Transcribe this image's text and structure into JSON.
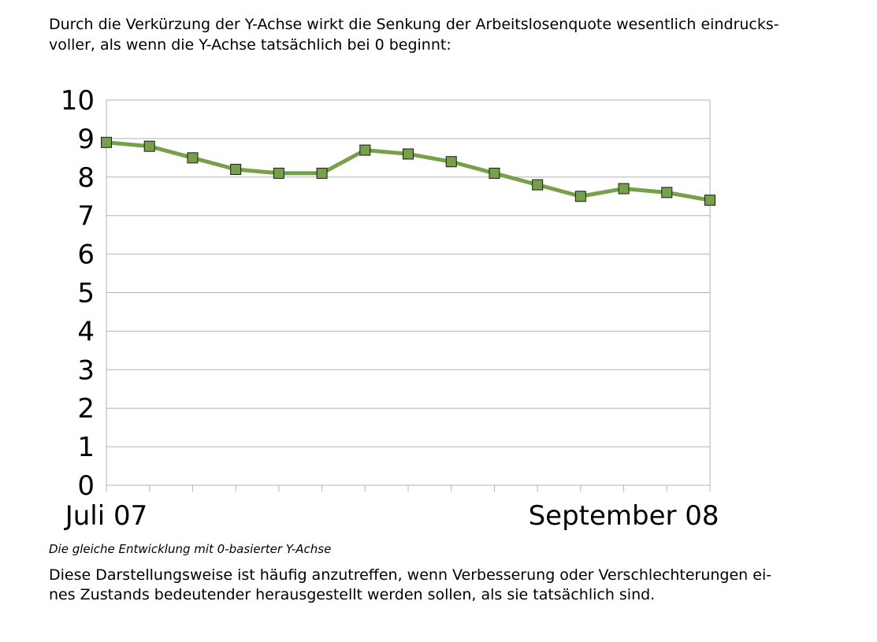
{
  "text": {
    "intro_line1": "Durch die Verkürzung der Y-Achse wirkt die Senkung der Arbeitslosenquote wesentlich eindrucks-",
    "intro_line2": "voller, als wenn die Y-Achse tatsächlich bei 0 beginnt:",
    "caption": "Die gleiche Entwicklung mit 0-basierter Y-Achse",
    "outro_line1": "Diese Darstellungsweise ist häufig anzutreffen, wenn Verbesserung oder Verschlechterungen ei-",
    "outro_line2": "nes Zustands bedeutender herausgestellt werden sollen, als sie tatsächlich sind."
  },
  "chart_data": {
    "type": "line",
    "title": "",
    "xlabel": "",
    "ylabel": "",
    "x_tick_labels": [
      "Juli 07",
      "September 08"
    ],
    "x_tick_label_positions": [
      0,
      12
    ],
    "yticks": [
      "0",
      "1",
      "2",
      "3",
      "4",
      "5",
      "6",
      "7",
      "8",
      "9",
      "10"
    ],
    "ylim": [
      0,
      10
    ],
    "grid": true,
    "legend": "none",
    "series": [
      {
        "color": "#77a04a",
        "marker": "square",
        "marker_color": "#77a04a",
        "values": [
          8.9,
          8.8,
          8.5,
          8.2,
          8.1,
          8.1,
          8.7,
          8.6,
          8.4,
          8.1,
          7.8,
          7.5,
          7.7,
          7.6,
          7.4
        ]
      }
    ]
  }
}
